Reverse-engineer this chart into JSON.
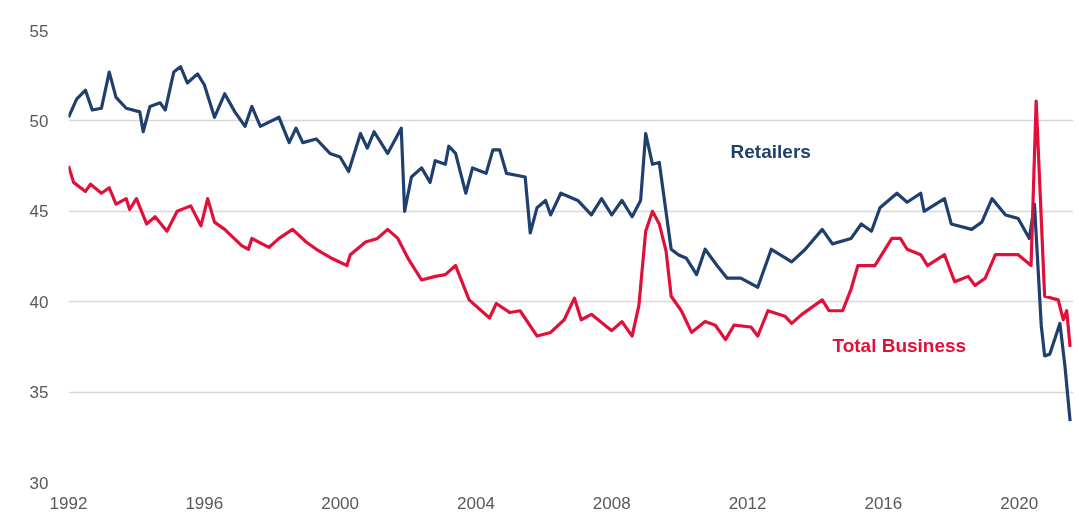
{
  "chart_data": {
    "type": "line",
    "xlim": [
      1992,
      2021.6
    ],
    "xticks": [
      1992,
      1996,
      2000,
      2004,
      2008,
      2012,
      2016,
      2020
    ],
    "ylim": [
      30,
      55
    ],
    "yticks": [
      30,
      35,
      40,
      45,
      50,
      55
    ],
    "grid": "y",
    "legend": false,
    "marker": "none",
    "line_style": "solid",
    "series": [
      {
        "name": "Retailers",
        "color": "#1f3f6e",
        "x": [
          1992.0,
          1992.24,
          1992.5,
          1992.7,
          1992.97,
          1993.2,
          1993.4,
          1993.7,
          1994.1,
          1994.2,
          1994.4,
          1994.7,
          1994.85,
          1995.1,
          1995.3,
          1995.5,
          1995.8,
          1996.0,
          1996.3,
          1996.6,
          1996.9,
          1997.2,
          1997.4,
          1997.65,
          1998.2,
          1998.5,
          1998.7,
          1998.9,
          1999.3,
          1999.7,
          2000.0,
          2000.25,
          2000.6,
          2000.8,
          2001.0,
          2001.4,
          2001.8,
          2001.9,
          2002.1,
          2002.4,
          2002.65,
          2002.8,
          2003.1,
          2003.2,
          2003.4,
          2003.7,
          2003.9,
          2004.3,
          2004.5,
          2004.7,
          2004.9,
          2005.45,
          2005.6,
          2005.8,
          2006.05,
          2006.2,
          2006.5,
          2007.0,
          2007.4,
          2007.7,
          2008.0,
          2008.3,
          2008.6,
          2008.85,
          2009.0,
          2009.2,
          2009.4,
          2009.75,
          2009.96,
          2010.2,
          2010.5,
          2010.75,
          2011.1,
          2011.4,
          2011.8,
          2012.3,
          2012.7,
          2013.3,
          2013.7,
          2014.2,
          2014.5,
          2015.05,
          2015.35,
          2015.65,
          2015.9,
          2016.4,
          2016.7,
          2017.1,
          2017.2,
          2017.8,
          2018.0,
          2018.6,
          2018.9,
          2019.2,
          2019.6,
          2019.97,
          2020.3,
          2020.45,
          2020.65,
          2020.75,
          2020.9,
          2021.2,
          2021.35,
          2021.5
        ],
        "values": [
          50.2,
          51.2,
          51.7,
          50.6,
          50.7,
          52.7,
          51.3,
          50.7,
          50.5,
          49.4,
          50.8,
          51.0,
          50.6,
          52.7,
          53.0,
          52.1,
          52.6,
          52.0,
          50.2,
          51.5,
          50.5,
          49.7,
          50.8,
          49.7,
          50.2,
          48.8,
          49.6,
          48.8,
          49.0,
          48.2,
          48.0,
          47.2,
          49.3,
          48.5,
          49.4,
          48.2,
          49.6,
          45.0,
          46.9,
          47.4,
          46.6,
          47.8,
          47.6,
          48.6,
          48.2,
          46.0,
          47.4,
          47.1,
          48.4,
          48.4,
          47.1,
          46.9,
          43.8,
          45.2,
          45.6,
          44.8,
          46.0,
          45.6,
          44.8,
          45.7,
          44.8,
          45.6,
          44.7,
          45.6,
          49.3,
          47.6,
          47.7,
          42.9,
          42.6,
          42.4,
          41.5,
          42.9,
          42.0,
          41.3,
          41.3,
          40.8,
          42.9,
          42.2,
          42.9,
          44.0,
          43.2,
          43.5,
          44.3,
          43.9,
          45.2,
          46.0,
          45.5,
          46.0,
          45.0,
          45.7,
          44.3,
          44.0,
          44.4,
          45.7,
          44.8,
          44.6,
          43.5,
          45.4,
          38.7,
          37.0,
          37.1,
          38.8,
          36.4,
          33.4
        ]
      },
      {
        "name": "Total Business",
        "color": "#e0103a",
        "x": [
          1992.0,
          1992.15,
          1992.5,
          1992.65,
          1992.97,
          1993.2,
          1993.4,
          1993.7,
          1993.8,
          1994.0,
          1994.3,
          1994.55,
          1994.9,
          1995.2,
          1995.6,
          1995.9,
          1996.1,
          1996.3,
          1996.6,
          1997.1,
          1997.3,
          1997.4,
          1997.9,
          1998.2,
          1998.6,
          1999.0,
          1999.3,
          1999.75,
          2000.2,
          2000.3,
          2000.75,
          2001.1,
          2001.4,
          2001.7,
          2002.0,
          2002.4,
          2002.8,
          2003.1,
          2003.4,
          2003.8,
          2004.4,
          2004.6,
          2005.0,
          2005.3,
          2005.8,
          2006.2,
          2006.6,
          2006.9,
          2007.1,
          2007.4,
          2008.0,
          2008.3,
          2008.6,
          2008.8,
          2009.0,
          2009.2,
          2009.4,
          2009.6,
          2009.75,
          2010.05,
          2010.35,
          2010.75,
          2011.05,
          2011.35,
          2011.6,
          2012.1,
          2012.3,
          2012.6,
          2013.1,
          2013.3,
          2013.6,
          2014.2,
          2014.4,
          2014.8,
          2015.05,
          2015.25,
          2015.75,
          2016.25,
          2016.5,
          2016.7,
          2017.1,
          2017.3,
          2017.8,
          2018.1,
          2018.5,
          2018.7,
          2019.0,
          2019.3,
          2019.97,
          2020.35,
          2020.5,
          2020.75,
          2021.15,
          2021.3,
          2021.4,
          2021.5
        ],
        "values": [
          47.5,
          46.6,
          46.1,
          46.5,
          46.0,
          46.3,
          45.4,
          45.7,
          45.1,
          45.7,
          44.3,
          44.7,
          43.9,
          45.0,
          45.3,
          44.2,
          45.7,
          44.4,
          44.0,
          43.1,
          42.9,
          43.5,
          43.0,
          43.5,
          44.0,
          43.3,
          42.9,
          42.4,
          42.0,
          42.6,
          43.3,
          43.5,
          44.0,
          43.5,
          42.4,
          41.2,
          41.4,
          41.5,
          42.0,
          40.1,
          39.1,
          39.9,
          39.4,
          39.5,
          38.1,
          38.3,
          39.0,
          40.2,
          39.0,
          39.3,
          38.4,
          38.9,
          38.1,
          39.8,
          43.9,
          45.0,
          44.3,
          42.8,
          40.3,
          39.5,
          38.3,
          38.9,
          38.7,
          37.9,
          38.7,
          38.6,
          38.1,
          39.5,
          39.2,
          38.8,
          39.3,
          40.1,
          39.5,
          39.5,
          40.7,
          42.0,
          42.0,
          43.5,
          43.5,
          42.9,
          42.6,
          42.0,
          42.6,
          41.1,
          41.4,
          40.9,
          41.3,
          42.6,
          42.6,
          42.0,
          51.1,
          40.3,
          40.1,
          39.0,
          39.5,
          37.5
        ]
      }
    ]
  }
}
